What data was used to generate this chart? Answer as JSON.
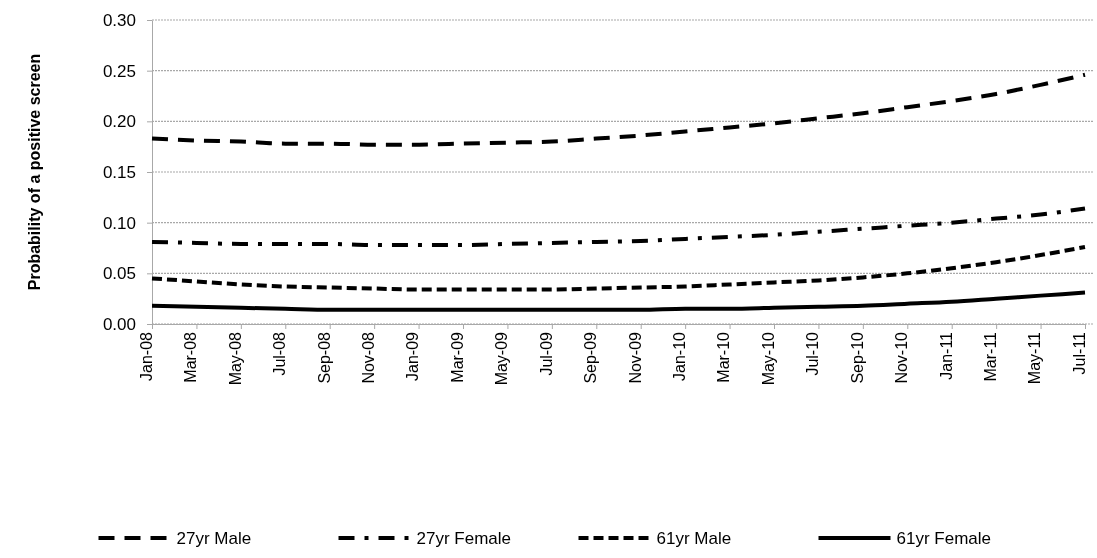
{
  "chart_data": {
    "type": "line",
    "ylabel": "Probability of a positive screen",
    "categories": [
      "Jan-08",
      "Mar-08",
      "May-08",
      "Jul-08",
      "Sep-08",
      "Nov-08",
      "Jan-09",
      "Mar-09",
      "May-09",
      "Jul-09",
      "Sep-09",
      "Nov-09",
      "Jan-10",
      "Mar-10",
      "May-10",
      "Jul-10",
      "Sep-10",
      "Nov-10",
      "Jan-11",
      "Mar-11",
      "May-11",
      "Jul-11"
    ],
    "series": [
      {
        "name": "27yr Male",
        "color": "#000000",
        "line_style": "dashed",
        "values": [
          0.183,
          0.181,
          0.18,
          0.178,
          0.178,
          0.177,
          0.177,
          0.178,
          0.179,
          0.18,
          0.183,
          0.186,
          0.19,
          0.194,
          0.198,
          0.203,
          0.208,
          0.214,
          0.22,
          0.227,
          0.236,
          0.246
        ]
      },
      {
        "name": "27yr Female",
        "color": "#000000",
        "line_style": "dashed",
        "values": [
          0.081,
          0.08,
          0.079,
          0.079,
          0.079,
          0.078,
          0.078,
          0.078,
          0.079,
          0.08,
          0.081,
          0.082,
          0.084,
          0.086,
          0.088,
          0.091,
          0.094,
          0.097,
          0.1,
          0.104,
          0.108,
          0.114
        ]
      },
      {
        "name": "61yr Male",
        "color": "#000000",
        "line_style": "dashed",
        "values": [
          0.045,
          0.042,
          0.039,
          0.037,
          0.036,
          0.035,
          0.034,
          0.034,
          0.034,
          0.034,
          0.035,
          0.036,
          0.037,
          0.039,
          0.041,
          0.043,
          0.046,
          0.05,
          0.055,
          0.061,
          0.068,
          0.076
        ]
      },
      {
        "name": "61yr Female",
        "color": "#000000",
        "line_style": "solid",
        "values": [
          0.018,
          0.017,
          0.016,
          0.015,
          0.014,
          0.014,
          0.014,
          0.014,
          0.014,
          0.014,
          0.014,
          0.014,
          0.015,
          0.015,
          0.016,
          0.017,
          0.018,
          0.02,
          0.022,
          0.025,
          0.028,
          0.031
        ]
      }
    ],
    "ylim": [
      0,
      0.3
    ],
    "yticks": [
      {
        "value": 0,
        "label": "0.00"
      },
      {
        "value": 0.05,
        "label": "0.05"
      },
      {
        "value": 0.1,
        "label": "0.10"
      },
      {
        "value": 0.15,
        "label": "0.15"
      },
      {
        "value": 0.2,
        "label": "0.20"
      },
      {
        "value": 0.25,
        "label": "0.25"
      },
      {
        "value": 0.3,
        "label": "0.30"
      }
    ],
    "grid": "y",
    "legend": "bottom",
    "marker": "none"
  }
}
